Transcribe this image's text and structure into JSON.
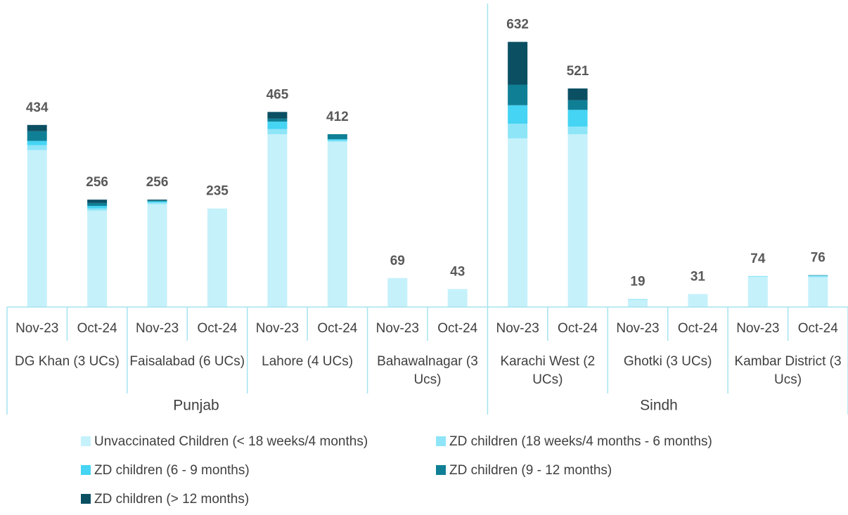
{
  "chart_data": {
    "type": "stacked_bar",
    "categories": [
      "Nov-23",
      "Oct-24",
      "Nov-23",
      "Oct-24",
      "Nov-23",
      "Oct-24",
      "Nov-23",
      "Oct-24",
      "Nov-23",
      "Oct-24",
      "Nov-23",
      "Oct-24",
      "Nov-23",
      "Oct-24"
    ],
    "groups": [
      "DG Khan (3 UCs)",
      "Faisalabad (6 UCs)",
      "Lahore (4 UCs)",
      "Bahawalnagar (3 Ucs)",
      "Karachi West (2 UCs)",
      "Ghotki (3 UCs)",
      "Kambar District (3 Ucs)"
    ],
    "provinces": [
      "Punjab",
      "Sindh"
    ],
    "series": [
      {
        "name": "Unvaccinated Children (< 18 weeks/4 months)",
        "color": "#c5f1fb",
        "values": [
          374,
          230,
          245,
          235,
          412,
          394,
          69,
          43,
          402,
          412,
          17,
          31,
          72,
          71
        ]
      },
      {
        "name": "ZD children (18 weeks/4 months - 6 months)",
        "color": "#8ee5f8",
        "values": [
          12,
          5,
          4,
          0,
          12,
          3,
          0,
          0,
          35,
          18,
          2,
          0,
          2,
          3
        ]
      },
      {
        "name": "ZD children (6 - 9 months)",
        "color": "#45d4f3",
        "values": [
          10,
          6,
          3,
          0,
          18,
          3,
          0,
          0,
          44,
          40,
          0,
          0,
          0,
          1
        ]
      },
      {
        "name": "ZD children (9 - 12 months)",
        "color": "#0f7f96",
        "values": [
          23,
          7,
          2,
          0,
          7,
          12,
          0,
          0,
          49,
          23,
          0,
          0,
          0,
          1
        ]
      },
      {
        "name": "ZD children (> 12  months)",
        "color": "#0b4f63",
        "values": [
          15,
          8,
          2,
          0,
          16,
          0,
          0,
          0,
          102,
          28,
          0,
          0,
          0,
          0
        ]
      }
    ],
    "totals": [
      434,
      256,
      256,
      235,
      465,
      412,
      69,
      43,
      632,
      521,
      19,
      31,
      74,
      76
    ],
    "ylim": [
      0,
      700
    ]
  }
}
